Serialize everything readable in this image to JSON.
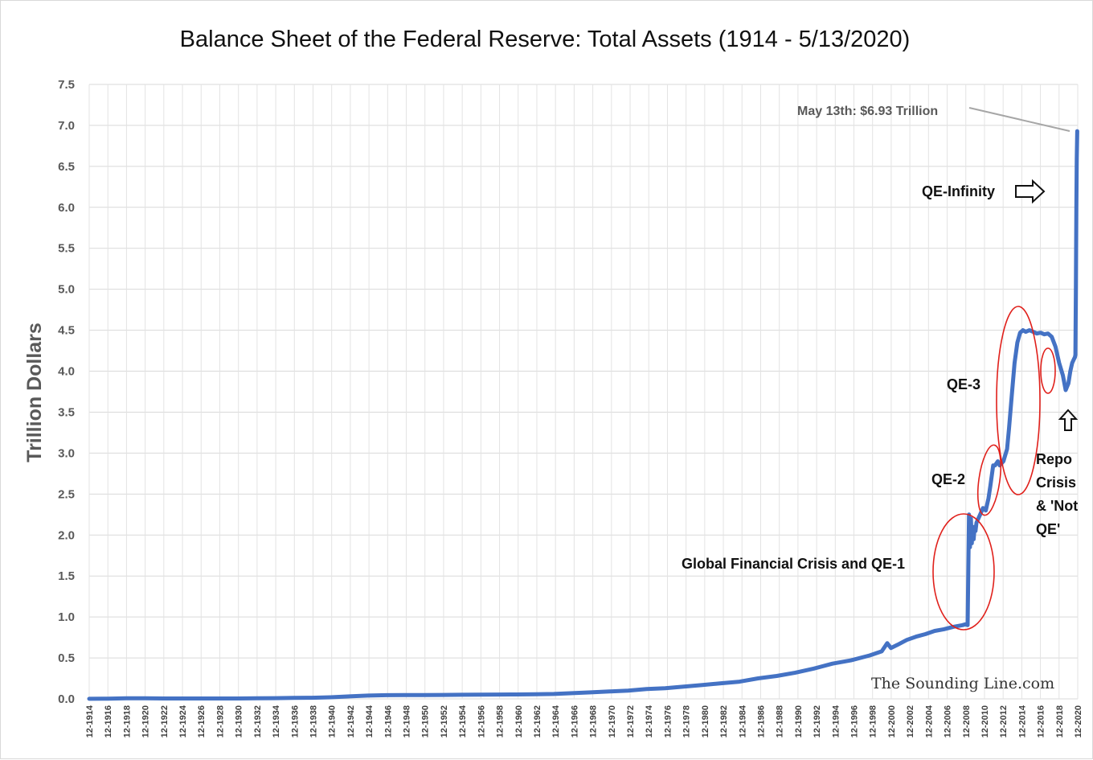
{
  "chart_data": {
    "type": "line",
    "title": "Balance Sheet of the Federal Reserve: Total Assets (1914 - 5/13/2020)",
    "xlabel": "",
    "ylabel": "Trillion Dollars",
    "ylim": [
      0,
      7.5
    ],
    "xlim": [
      1914,
      2020.4
    ],
    "y_ticks": [
      "0.0",
      "0.5",
      "1.0",
      "1.5",
      "2.0",
      "2.5",
      "3.0",
      "3.5",
      "4.0",
      "4.5",
      "5.0",
      "5.5",
      "6.0",
      "6.5",
      "7.0",
      "7.5"
    ],
    "x_tick_labels": [
      "12-1914",
      "12-1916",
      "12-1918",
      "12-1920",
      "12-1922",
      "12-1924",
      "12-1926",
      "12-1928",
      "12-1930",
      "12-1932",
      "12-1934",
      "12-1936",
      "12-1938",
      "12-1940",
      "12-1942",
      "12-1944",
      "12-1946",
      "12-1948",
      "12-1950",
      "12-1952",
      "12-1954",
      "12-1956",
      "12-1958",
      "12-1960",
      "12-1962",
      "12-1964",
      "12-1966",
      "12-1968",
      "12-1970",
      "12-1972",
      "12-1974",
      "12-1976",
      "12-1978",
      "12-1980",
      "12-1982",
      "12-1984",
      "12-1986",
      "12-1988",
      "12-1990",
      "12-1992",
      "12-1994",
      "12-1996",
      "12-1998",
      "12-2000",
      "12-2002",
      "12-2004",
      "12-2006",
      "12-2008",
      "12-2010",
      "12-2012",
      "12-2014",
      "12-2016",
      "12-2018",
      "12-2020"
    ],
    "grid": true,
    "color": "#4472C4",
    "series": [
      {
        "x": [
          1914,
          1916,
          1918,
          1920,
          1922,
          1924,
          1926,
          1928,
          1930,
          1932,
          1934,
          1936,
          1938,
          1940,
          1942,
          1944,
          1946,
          1948,
          1950,
          1952,
          1954,
          1956,
          1958,
          1960,
          1962,
          1964,
          1966,
          1968,
          1970,
          1972,
          1974,
          1976,
          1978,
          1980,
          1982,
          1984,
          1986,
          1988,
          1990,
          1992,
          1994,
          1996,
          1998,
          1999.3,
          1999.9,
          2000.3,
          2001,
          2002,
          2003,
          2004,
          2005,
          2006,
          2007,
          2008.0,
          2008.3,
          2008.55,
          2008.7,
          2008.8,
          2008.9,
          2009.0,
          2009.1,
          2009.2,
          2009.3,
          2009.4,
          2009.5,
          2009.7,
          2009.9,
          2010.2,
          2010.5,
          2010.8,
          2011.0,
          2011.3,
          2011.5,
          2011.8,
          2012.0,
          2012.4,
          2012.8,
          2013.0,
          2013.3,
          2013.6,
          2013.9,
          2014.2,
          2014.5,
          2014.8,
          2015.2,
          2015.6,
          2016.0,
          2016.4,
          2016.8,
          2017.2,
          2017.6,
          2018.0,
          2018.4,
          2018.8,
          2019.1,
          2019.4,
          2019.6,
          2019.8,
          2020.0,
          2020.1,
          2020.15,
          2020.2,
          2020.25,
          2020.3,
          2020.35
        ],
        "y": [
          0.001,
          0.003,
          0.008,
          0.007,
          0.005,
          0.005,
          0.005,
          0.005,
          0.005,
          0.008,
          0.009,
          0.012,
          0.014,
          0.02,
          0.03,
          0.04,
          0.045,
          0.046,
          0.046,
          0.048,
          0.05,
          0.052,
          0.053,
          0.054,
          0.056,
          0.06,
          0.07,
          0.08,
          0.09,
          0.1,
          0.12,
          0.13,
          0.15,
          0.17,
          0.19,
          0.21,
          0.25,
          0.28,
          0.32,
          0.37,
          0.43,
          0.47,
          0.53,
          0.58,
          0.68,
          0.62,
          0.66,
          0.72,
          0.76,
          0.79,
          0.83,
          0.85,
          0.88,
          0.9,
          0.91,
          0.9,
          2.25,
          1.85,
          2.2,
          1.9,
          2.1,
          1.95,
          2.1,
          2.05,
          2.15,
          2.2,
          2.25,
          2.33,
          2.3,
          2.45,
          2.6,
          2.85,
          2.85,
          2.9,
          2.85,
          2.9,
          3.05,
          3.3,
          3.7,
          4.1,
          4.35,
          4.47,
          4.5,
          4.48,
          4.5,
          4.48,
          4.46,
          4.47,
          4.45,
          4.46,
          4.42,
          4.3,
          4.1,
          3.95,
          3.77,
          3.85,
          4.0,
          4.1,
          4.15,
          4.17,
          4.2,
          5.0,
          6.0,
          6.6,
          6.93
        ]
      }
    ],
    "annotations": {
      "may13": "May 13th: $6.93 Trillion",
      "qe_infinity": "QE-Infinity",
      "qe3": "QE-3",
      "qe2": "QE-2",
      "gfc": "Global Financial Crisis and QE-1",
      "repo_lines": [
        "Repo",
        "Crisis",
        "& 'Not",
        "QE'"
      ]
    },
    "highlight_color": "#e0201b",
    "watermark": "The Sounding Line.com"
  }
}
